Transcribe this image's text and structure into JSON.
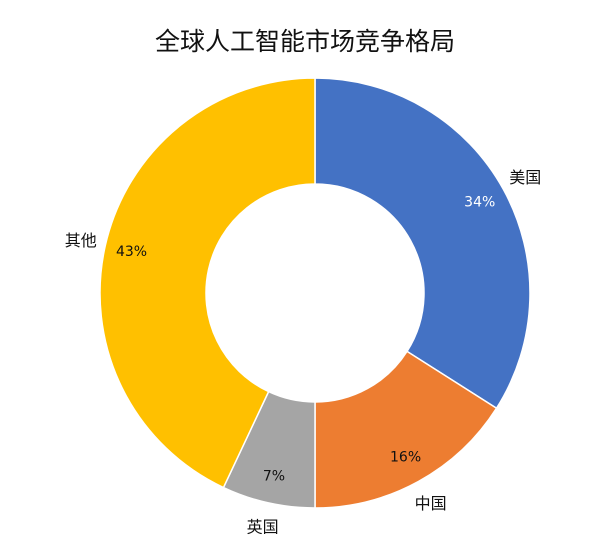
{
  "chart_data": {
    "type": "pie",
    "variant": "donut",
    "title": "全球人工智能市场竞争格局",
    "slices": [
      {
        "label": "美国",
        "value": 34,
        "value_label": "34%",
        "color": "#4472C4",
        "value_label_color": "#ffffff"
      },
      {
        "label": "中国",
        "value": 16,
        "value_label": "16%",
        "color": "#ED7D31",
        "value_label_color": "#111111"
      },
      {
        "label": "英国",
        "value": 7,
        "value_label": "7%",
        "color": "#A5A5A5",
        "value_label_color": "#111111"
      },
      {
        "label": "其他",
        "value": 43,
        "value_label": "43%",
        "color": "#FFC000",
        "value_label_color": "#111111"
      }
    ],
    "start_angle_deg": 0,
    "direction": "clockwise",
    "legend": "none",
    "category_labels": "outside"
  }
}
